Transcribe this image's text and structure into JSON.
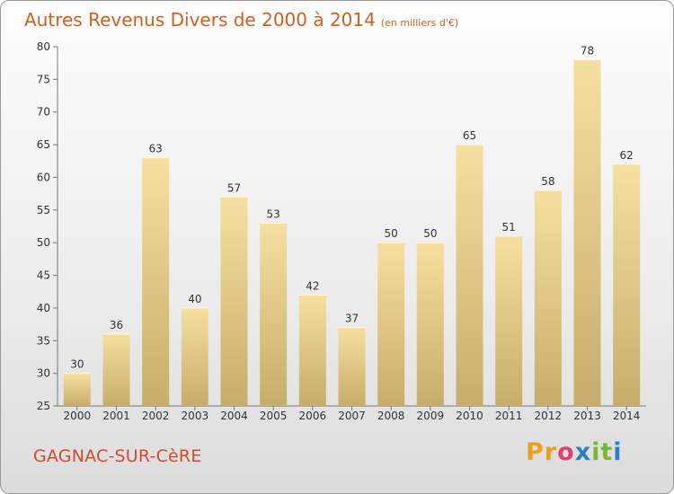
{
  "header": {
    "title": "Autres Revenus Divers de 2000 à 2014",
    "subtitle": "(en milliers d'€)"
  },
  "footer": {
    "commune": "GAGNAC-SUR-CèRE",
    "logo": [
      "P",
      "r",
      "o",
      "x",
      "i",
      "t",
      "i"
    ]
  },
  "colors": {
    "title": "#d06020",
    "commune": "#d44a2c",
    "bar_top": "#f6dfa0",
    "bar_bottom": "#c7ad6b",
    "logo": [
      "#e8a020",
      "#e8a020",
      "#e04070",
      "#2a80c8",
      "#7ab830",
      "#7ab830",
      "#2a80c8"
    ]
  },
  "chart_data": {
    "type": "bar",
    "title": "Autres Revenus Divers de 2000 à 2014",
    "subtitle": "(en milliers d'€)",
    "categories": [
      "2000",
      "2001",
      "2002",
      "2003",
      "2004",
      "2005",
      "2006",
      "2007",
      "2008",
      "2009",
      "2010",
      "2011",
      "2012",
      "2013",
      "2014"
    ],
    "values": [
      30,
      36,
      63,
      40,
      57,
      53,
      42,
      37,
      50,
      50,
      65,
      51,
      58,
      78,
      62
    ],
    "ylim": [
      25,
      80
    ],
    "yticks": [
      25,
      30,
      35,
      40,
      45,
      50,
      55,
      60,
      65,
      70,
      75,
      80
    ],
    "grid": false,
    "data_labels": true
  }
}
